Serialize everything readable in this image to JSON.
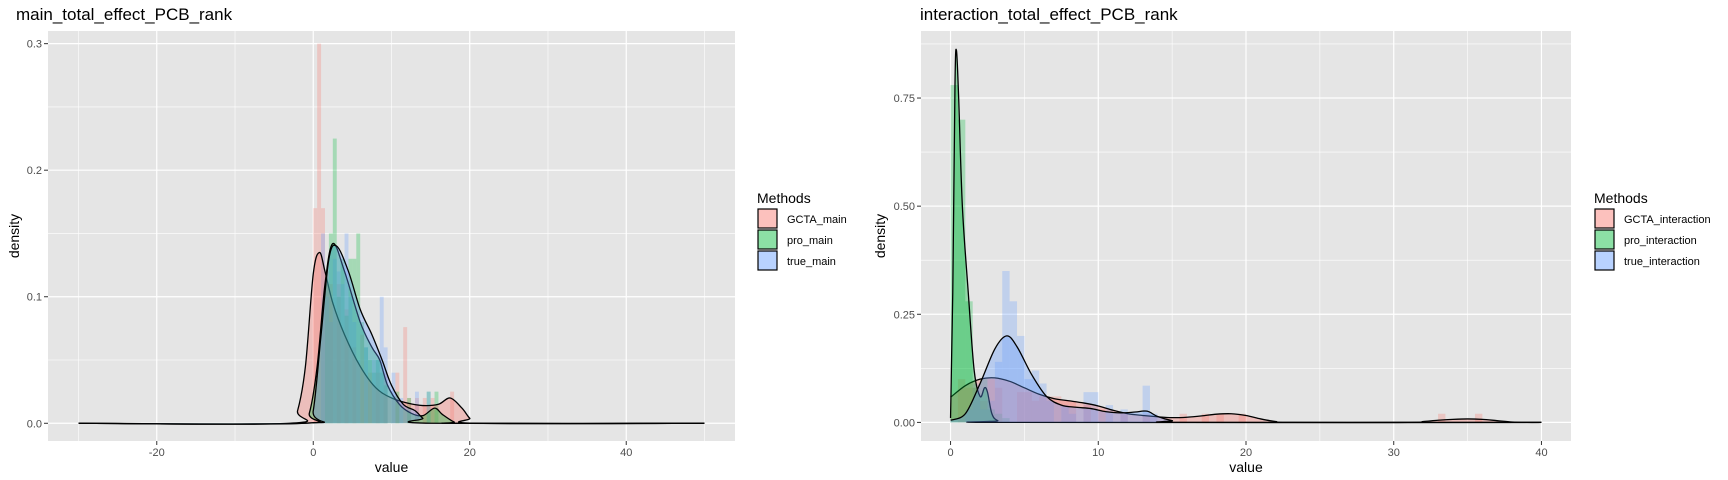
{
  "colors": {
    "panel_bg": "#e5e5e5",
    "grid": "#ffffff",
    "series": [
      "#f8766d",
      "#00ba38",
      "#619cff"
    ]
  },
  "chart_data": [
    {
      "type": "area",
      "title": "main_total_effect_PCB_rank",
      "xlabel": "value",
      "ylabel": "density",
      "xlim": [
        -33.9,
        53.9
      ],
      "ylim": [
        -0.014,
        0.31
      ],
      "xticks": [
        -20,
        0,
        20,
        40
      ],
      "xtick_labels": [
        "-20",
        "0",
        "20",
        "40"
      ],
      "yticks": [
        0,
        0.1,
        0.2,
        0.3
      ],
      "ytick_labels": [
        "0.0",
        "0.1",
        "0.2",
        "0.3"
      ],
      "grid": true,
      "legend": {
        "title": "Methods",
        "position": "right"
      },
      "x_range": [
        -30,
        50
      ],
      "histogram_bin_width": 0.5,
      "series": [
        {
          "name": "GCTA_main",
          "color": "#f8766d",
          "histogram": [
            [
              0.25,
              0.17
            ],
            [
              0.75,
              0.3
            ],
            [
              1.25,
              0.17
            ],
            [
              1.75,
              0.12
            ],
            [
              2.25,
              0.11
            ],
            [
              3.25,
              0.11
            ],
            [
              4.25,
              0.09
            ],
            [
              5.25,
              0.06
            ],
            [
              6.25,
              0.07
            ],
            [
              7.25,
              0.04
            ],
            [
              8.25,
              0.04
            ],
            [
              9.25,
              0.04
            ],
            [
              10.75,
              0.04
            ],
            [
              11.75,
              0.076
            ],
            [
              12.25,
              0.02
            ],
            [
              13.25,
              0.02
            ],
            [
              14.25,
              0.02
            ],
            [
              15.25,
              0.02
            ],
            [
              17.75,
              0.025
            ]
          ],
          "density": [
            [
              -30,
              0
            ],
            [
              -3,
              0
            ],
            [
              -2,
              0.01
            ],
            [
              -1,
              0.045
            ],
            [
              0,
              0.118
            ],
            [
              0.8,
              0.135
            ],
            [
              1.5,
              0.12
            ],
            [
              2.5,
              0.095
            ],
            [
              4,
              0.07
            ],
            [
              6,
              0.045
            ],
            [
              8,
              0.028
            ],
            [
              10,
              0.02
            ],
            [
              12,
              0.016
            ],
            [
              14,
              0.014
            ],
            [
              16,
              0.015
            ],
            [
              17.5,
              0.02
            ],
            [
              19,
              0.012
            ],
            [
              20,
              0.004
            ],
            [
              21,
              0
            ],
            [
              50,
              0
            ]
          ]
        },
        {
          "name": "pro_main",
          "color": "#00ba38",
          "histogram": [
            [
              1.75,
              0.11
            ],
            [
              2.25,
              0.15
            ],
            [
              2.75,
              0.225
            ],
            [
              3.25,
              0.1
            ],
            [
              3.75,
              0.13
            ],
            [
              4.25,
              0.085
            ],
            [
              4.75,
              0.13
            ],
            [
              5.25,
              0.13
            ],
            [
              5.75,
              0.15
            ],
            [
              6.25,
              0.08
            ],
            [
              6.75,
              0.06
            ],
            [
              7.25,
              0.05
            ],
            [
              7.75,
              0.04
            ],
            [
              8.25,
              0.05
            ],
            [
              8.75,
              0.04
            ],
            [
              9.25,
              0.03
            ],
            [
              10.75,
              0.025
            ],
            [
              12.25,
              0.02
            ],
            [
              14.75,
              0.025
            ],
            [
              15.75,
              0.025
            ]
          ],
          "density": [
            [
              -30,
              0
            ],
            [
              -1.5,
              0
            ],
            [
              -0.5,
              0.008
            ],
            [
              0.5,
              0.045
            ],
            [
              1.5,
              0.11
            ],
            [
              2.5,
              0.142
            ],
            [
              4,
              0.12
            ],
            [
              6,
              0.08
            ],
            [
              7.5,
              0.06
            ],
            [
              8.5,
              0.05
            ],
            [
              9.5,
              0.03
            ],
            [
              11,
              0.015
            ],
            [
              12.5,
              0.008
            ],
            [
              14,
              0.006
            ],
            [
              15.5,
              0.012
            ],
            [
              16.5,
              0.007
            ],
            [
              18,
              0.001
            ],
            [
              19,
              0
            ],
            [
              50,
              0
            ]
          ]
        },
        {
          "name": "true_main",
          "color": "#619cff",
          "histogram": [
            [
              1.25,
              0.15
            ],
            [
              1.75,
              0.1
            ],
            [
              2.25,
              0.08
            ],
            [
              2.75,
              0.13
            ],
            [
              3.25,
              0.12
            ],
            [
              3.75,
              0.11
            ],
            [
              4.25,
              0.15
            ],
            [
              4.75,
              0.1
            ],
            [
              5.25,
              0.08
            ],
            [
              5.75,
              0.05
            ],
            [
              6.75,
              0.06
            ],
            [
              7.75,
              0.05
            ],
            [
              8.25,
              0.05
            ],
            [
              8.75,
              0.1
            ],
            [
              9.25,
              0.06
            ],
            [
              10.25,
              0.04
            ],
            [
              11.25,
              0.02
            ],
            [
              13.25,
              0.025
            ],
            [
              14.75,
              0.025
            ]
          ],
          "density": [
            [
              -30,
              0
            ],
            [
              -1,
              0
            ],
            [
              0,
              0.01
            ],
            [
              1,
              0.07
            ],
            [
              2,
              0.13
            ],
            [
              3,
              0.14
            ],
            [
              4.5,
              0.12
            ],
            [
              6,
              0.09
            ],
            [
              7.5,
              0.07
            ],
            [
              8.8,
              0.05
            ],
            [
              10,
              0.03
            ],
            [
              11.5,
              0.015
            ],
            [
              13,
              0.01
            ],
            [
              14,
              0.004
            ],
            [
              15,
              0
            ],
            [
              50,
              0
            ]
          ]
        }
      ]
    },
    {
      "type": "area",
      "title": "interaction_total_effect_PCB_rank",
      "xlabel": "value",
      "ylabel": "density",
      "xlim": [
        -2.0,
        42.0
      ],
      "ylim": [
        -0.043,
        0.905
      ],
      "xticks": [
        0,
        10,
        20,
        30,
        40
      ],
      "xtick_labels": [
        "0",
        "10",
        "20",
        "30",
        "40"
      ],
      "yticks": [
        0,
        0.25,
        0.5,
        0.75
      ],
      "ytick_labels": [
        "0.00",
        "0.25",
        "0.50",
        "0.75"
      ],
      "grid": true,
      "legend": {
        "title": "Methods",
        "position": "right"
      },
      "x_range": [
        0,
        40
      ],
      "histogram_bin_width": 0.5,
      "series": [
        {
          "name": "GCTA_interaction",
          "color": "#f8766d",
          "histogram": [
            [
              0.75,
              0.1
            ],
            [
              1.25,
              0.08
            ],
            [
              1.75,
              0.08
            ],
            [
              2.25,
              0.05
            ],
            [
              2.75,
              0.1
            ],
            [
              3.25,
              0.08
            ],
            [
              4.75,
              0.07
            ],
            [
              5.25,
              0.07
            ],
            [
              5.75,
              0.05
            ],
            [
              6.25,
              0.06
            ],
            [
              6.75,
              0.06
            ],
            [
              7.25,
              0.06
            ],
            [
              7.75,
              0.05
            ],
            [
              8.25,
              0.05
            ],
            [
              9.25,
              0.04
            ],
            [
              10.25,
              0.03
            ],
            [
              11.75,
              0.02
            ],
            [
              13.25,
              0.02
            ],
            [
              15.75,
              0.02
            ],
            [
              17.25,
              0.02
            ],
            [
              18.25,
              0.02
            ],
            [
              19.75,
              0.02
            ],
            [
              33.25,
              0.02
            ],
            [
              35.75,
              0.02
            ]
          ],
          "density": [
            [
              0,
              0.058
            ],
            [
              1,
              0.085
            ],
            [
              2,
              0.1
            ],
            [
              3,
              0.103
            ],
            [
              4,
              0.095
            ],
            [
              5,
              0.08
            ],
            [
              6,
              0.065
            ],
            [
              7,
              0.055
            ],
            [
              8,
              0.05
            ],
            [
              9,
              0.045
            ],
            [
              10,
              0.038
            ],
            [
              11,
              0.028
            ],
            [
              12,
              0.02
            ],
            [
              13,
              0.016
            ],
            [
              14,
              0.013
            ],
            [
              15,
              0.011
            ],
            [
              16,
              0.012
            ],
            [
              17,
              0.015
            ],
            [
              18,
              0.019
            ],
            [
              19,
              0.02
            ],
            [
              20,
              0.016
            ],
            [
              21,
              0.008
            ],
            [
              22,
              0.002
            ],
            [
              23,
              0
            ],
            [
              31,
              0
            ],
            [
              32,
              0.002
            ],
            [
              33,
              0.005
            ],
            [
              34,
              0.007
            ],
            [
              35,
              0.008
            ],
            [
              36,
              0.007
            ],
            [
              37,
              0.004
            ],
            [
              38,
              0.001
            ],
            [
              39,
              0
            ],
            [
              40,
              0
            ]
          ]
        },
        {
          "name": "pro_interaction",
          "color": "#00ba38",
          "histogram": [
            [
              0.25,
              0.78
            ],
            [
              0.75,
              0.7
            ],
            [
              1.25,
              0.28
            ],
            [
              1.75,
              0.08
            ],
            [
              2.25,
              0.1
            ],
            [
              2.75,
              0.03
            ],
            [
              3.25,
              0.02
            ],
            [
              3.75,
              0.01
            ]
          ],
          "density": [
            [
              0,
              0.01
            ],
            [
              0.15,
              0.3
            ],
            [
              0.3,
              0.78
            ],
            [
              0.4,
              0.86
            ],
            [
              0.55,
              0.75
            ],
            [
              0.8,
              0.5
            ],
            [
              1.2,
              0.3
            ],
            [
              1.6,
              0.12
            ],
            [
              2,
              0.06
            ],
            [
              2.3,
              0.08
            ],
            [
              2.5,
              0.07
            ],
            [
              2.8,
              0.02
            ],
            [
              3.2,
              0.004
            ],
            [
              4,
              0
            ],
            [
              40,
              0
            ]
          ]
        },
        {
          "name": "true_interaction",
          "color": "#619cff",
          "histogram": [
            [
              1.25,
              0.03
            ],
            [
              1.75,
              0.09
            ],
            [
              2.25,
              0.03
            ],
            [
              2.75,
              0.05
            ],
            [
              3.25,
              0.14
            ],
            [
              3.75,
              0.35
            ],
            [
              4.25,
              0.28
            ],
            [
              4.75,
              0.2
            ],
            [
              5.25,
              0.1
            ],
            [
              5.75,
              0.12
            ],
            [
              6.25,
              0.09
            ],
            [
              6.75,
              0.05
            ],
            [
              7.75,
              0.04
            ],
            [
              8.25,
              0.02
            ],
            [
              9.25,
              0.07
            ],
            [
              9.75,
              0.07
            ],
            [
              10.75,
              0.04
            ],
            [
              11.75,
              0.03
            ],
            [
              13.25,
              0.085
            ],
            [
              13.75,
              0.02
            ]
          ],
          "density": [
            [
              0,
              0.005
            ],
            [
              1,
              0.02
            ],
            [
              2,
              0.09
            ],
            [
              3,
              0.17
            ],
            [
              3.8,
              0.2
            ],
            [
              4.5,
              0.175
            ],
            [
              5.5,
              0.11
            ],
            [
              6.5,
              0.06
            ],
            [
              7.5,
              0.04
            ],
            [
              8.5,
              0.035
            ],
            [
              9.5,
              0.032
            ],
            [
              10.5,
              0.025
            ],
            [
              11.5,
              0.022
            ],
            [
              12.5,
              0.024
            ],
            [
              13.3,
              0.026
            ],
            [
              14,
              0.014
            ],
            [
              15,
              0.004
            ],
            [
              16,
              0
            ],
            [
              40,
              0
            ]
          ]
        }
      ]
    }
  ]
}
